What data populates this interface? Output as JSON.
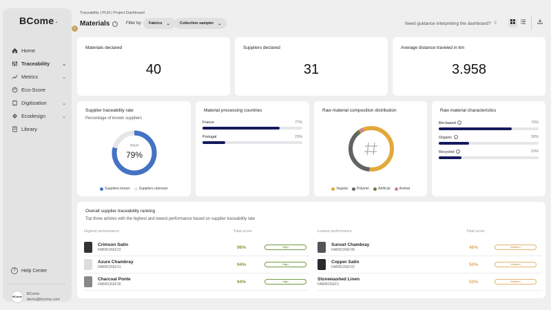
{
  "sidebar": {
    "logo": "BCome",
    "items": [
      {
        "label": "Home",
        "icon": "home-icon",
        "active": false,
        "chevron": false
      },
      {
        "label": "Traceability",
        "icon": "traceability-icon",
        "active": true,
        "chevron": true
      },
      {
        "label": "Metrics",
        "icon": "metrics-icon",
        "active": false,
        "chevron": true
      },
      {
        "label": "Eco-Score",
        "icon": "eco-score-icon",
        "active": false,
        "chevron": false
      },
      {
        "label": "Digitization",
        "icon": "digitization-icon",
        "active": false,
        "chevron": true
      },
      {
        "label": "Ecodesign",
        "icon": "ecodesign-icon",
        "active": false,
        "chevron": true
      },
      {
        "label": "Library",
        "icon": "library-icon",
        "active": false,
        "chevron": false
      }
    ],
    "help_label": "Help Center",
    "user": {
      "name": "BCome",
      "email": "demo@bcome.com",
      "avatar_text": "BCome"
    }
  },
  "header": {
    "breadcrumb": "Traceability | PLM | Project Dashboard",
    "title": "Materials",
    "filter_label": "Filter by:",
    "filters": [
      {
        "label": "Fabrics"
      },
      {
        "label": "Collection sampler"
      }
    ],
    "guidance": "Need guidance interpreting the dashboard?"
  },
  "kpis": [
    {
      "label": "Materials declared",
      "value": "40"
    },
    {
      "label": "Suppliers declared",
      "value": "31"
    },
    {
      "label": "Average distance traveled in km",
      "value": "3.958"
    }
  ],
  "traceability_rate": {
    "title": "Supplier traceability rate",
    "subtitle": "Percentage of known suppliers",
    "level": "HIGH",
    "value_text": "79%",
    "value": 79,
    "legend": [
      {
        "label": "Suppliers known",
        "color": "#4472c4"
      },
      {
        "label": "Suppliers unknown",
        "color": "#e6e6e6"
      }
    ]
  },
  "processing_countries": {
    "title": "Material processing countries",
    "items": [
      {
        "label": "France",
        "pct_text": "77%",
        "value": 77
      },
      {
        "label": "Portugal",
        "pct_text": "23%",
        "value": 23
      }
    ]
  },
  "composition": {
    "title": "Raw material composition distribution",
    "legend": [
      {
        "label": "Vegetal",
        "color": "#e3a83b"
      },
      {
        "label": "Polymer",
        "color": "#5f6466"
      },
      {
        "label": "Artificial",
        "color": "#6b7a3c"
      },
      {
        "label": "Animal",
        "color": "#c981a4"
      }
    ]
  },
  "characteristics": {
    "title": "Raw material characteristics",
    "items": [
      {
        "label": "Bio-based",
        "pct_text": "73%",
        "value": 73
      },
      {
        "label": "Organic",
        "pct_text": "30%",
        "value": 30
      },
      {
        "label": "Recycled",
        "pct_text": "23%",
        "value": 23
      }
    ]
  },
  "ranking": {
    "title": "Overall supplier traceability ranking",
    "subtitle": "Top three articles with the highest and lowest performance based on supplier traceability rate",
    "highest_label": "Highest performance",
    "lowest_label": "Lowest performance",
    "score_label": "Total score",
    "highest": [
      {
        "name": "Crimson Satin",
        "ref": "FABRICREF22",
        "score": "96%",
        "badge": "High"
      },
      {
        "name": "Azure Chambray",
        "ref": "FABRICREF31",
        "score": "94%",
        "badge": "High"
      },
      {
        "name": "Charcoal Ponte",
        "ref": "FABRICREF36",
        "score": "94%",
        "badge": "High"
      }
    ],
    "lowest": [
      {
        "name": "Sunset Chambray",
        "ref": "FABRICREF38",
        "score": "46%",
        "badge": "Medium"
      },
      {
        "name": "Copper Satin",
        "ref": "FABRICREF32",
        "score": "50%",
        "badge": "Medium"
      },
      {
        "name": "Stonewashed Linen",
        "ref": "FABRICREF3",
        "score": "52%",
        "badge": "Medium"
      }
    ],
    "high_color": "#7a9a3a",
    "medium_color": "#e3a65a"
  }
}
